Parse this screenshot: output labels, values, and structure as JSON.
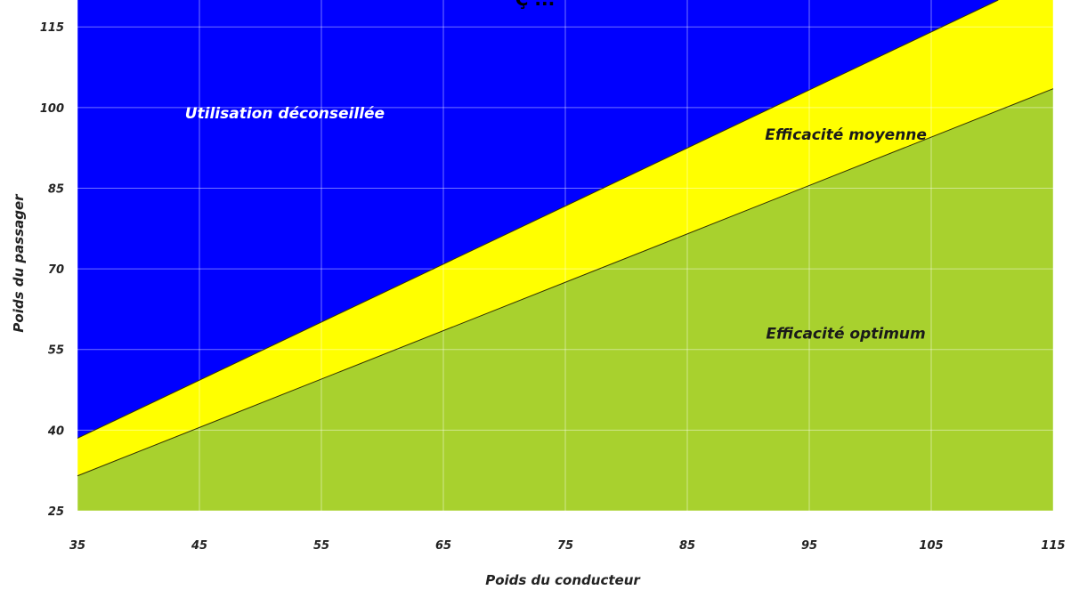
{
  "chart_data": {
    "type": "area",
    "title": "Ç ... ",
    "xlabel": "Poids du conducteur",
    "ylabel": "Poids du passager",
    "xlim": [
      35,
      115
    ],
    "ylim": [
      25,
      120
    ],
    "x_ticks": [
      35,
      45,
      55,
      65,
      75,
      85,
      95,
      105,
      115
    ],
    "y_ticks": [
      25,
      40,
      55,
      70,
      85,
      100,
      115
    ],
    "grid": true,
    "upper_boundary": {
      "x": [
        35,
        110.5
      ],
      "y": [
        38.5,
        120
      ]
    },
    "lower_boundary": {
      "x": [
        35,
        115
      ],
      "y": [
        31.5,
        103.5
      ]
    },
    "regions": [
      {
        "label": "Utilisation déconseillée",
        "color": "#0000FF",
        "label_color": "#FFFFFF",
        "label_at": [
          52,
          98
        ]
      },
      {
        "label": "Efficacité moyenne",
        "color": "#FFFF00",
        "label_color": "#1a1a1a",
        "label_at": [
          98,
          94
        ]
      },
      {
        "label": "Efficacité optimum",
        "color": "#A8D12E",
        "label_color": "#1a1a1a",
        "label_at": [
          98,
          57
        ]
      }
    ]
  }
}
